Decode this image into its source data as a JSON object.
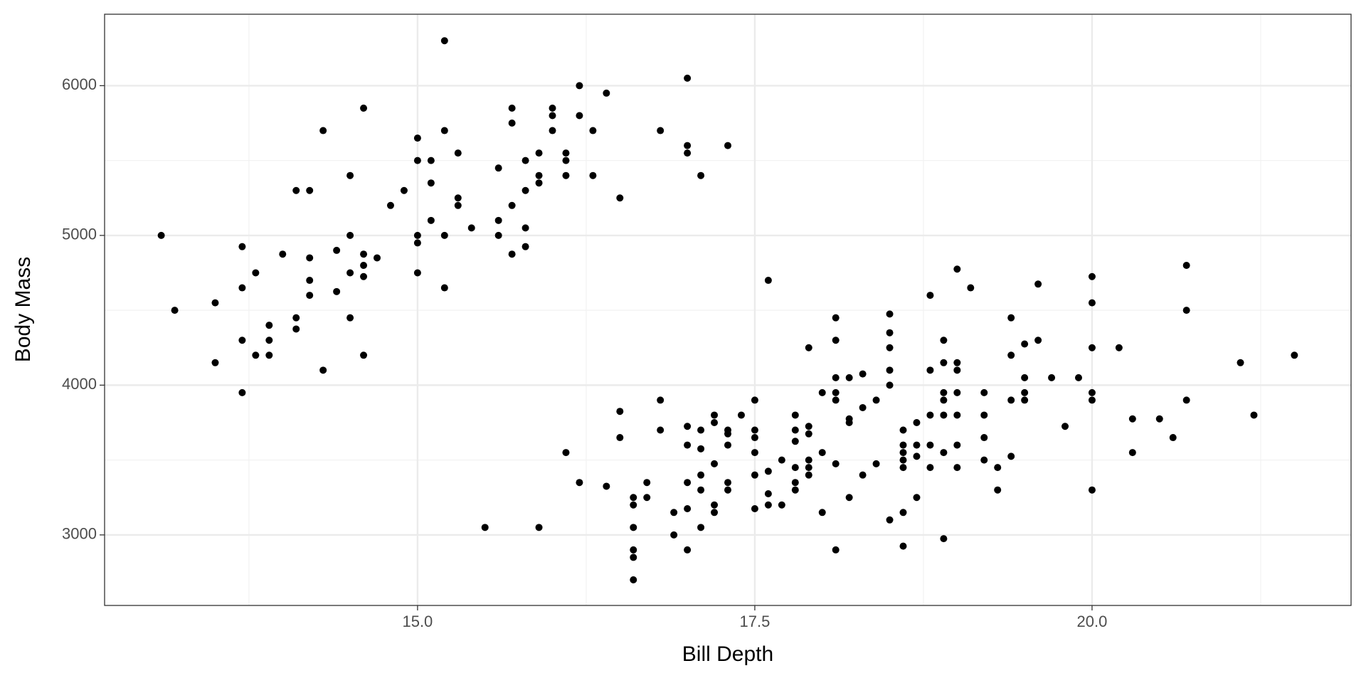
{
  "chart_data": {
    "type": "scatter",
    "x_label": "Bill Depth",
    "y_label": "Body Mass",
    "color": "#000000",
    "xlim": [
      12.68,
      21.92
    ],
    "ylim": [
      2529,
      6477
    ],
    "xticks": [
      {
        "value": 15,
        "label": "15.0"
      },
      17.5,
      {
        "value": 20,
        "label": "20.0"
      }
    ],
    "yticks": [
      3000,
      4000,
      5000,
      6000
    ],
    "minor_xticks": [
      13.75,
      16.25,
      18.75,
      21.25
    ],
    "minor_yticks": [
      3500,
      4500,
      5500
    ],
    "grid": true,
    "x": [
      13.1,
      13.2,
      13.5,
      13.5,
      13.7,
      13.7,
      13.7,
      13.7,
      13.8,
      13.8,
      13.9,
      13.9,
      13.9,
      14.0,
      14.1,
      14.1,
      14.1,
      14.2,
      14.2,
      14.2,
      14.2,
      14.3,
      14.3,
      14.4,
      14.4,
      14.5,
      14.5,
      14.5,
      14.5,
      14.6,
      14.6,
      14.6,
      14.6,
      14.6,
      14.7,
      14.8,
      14.9,
      15.0,
      15.0,
      15.0,
      15.0,
      15.0,
      15.1,
      15.1,
      15.1,
      15.2,
      15.2,
      15.2,
      15.2,
      15.3,
      15.3,
      15.3,
      15.4,
      15.6,
      15.6,
      15.6,
      15.7,
      15.7,
      15.7,
      15.7,
      15.8,
      15.8,
      15.8,
      15.8,
      15.9,
      15.9,
      15.9,
      16.0,
      16.0,
      16.0,
      16.1,
      16.1,
      16.1,
      16.2,
      16.2,
      16.3,
      16.3,
      16.4,
      16.5,
      16.8,
      17.0,
      17.0,
      17.0,
      17.1,
      17.3,
      15.5,
      15.9,
      16.1,
      16.2,
      16.4,
      16.5,
      16.5,
      16.6,
      16.6,
      16.6,
      16.6,
      16.6,
      16.6,
      16.7,
      16.7,
      16.8,
      16.8,
      16.9,
      16.9,
      17.0,
      17.0,
      17.0,
      17.0,
      17.0,
      17.1,
      17.1,
      17.1,
      17.1,
      17.1,
      17.2,
      17.2,
      17.2,
      17.2,
      17.2,
      17.3,
      17.3,
      17.3,
      17.3,
      17.3,
      17.4,
      17.5,
      17.5,
      17.5,
      17.5,
      17.5,
      17.5,
      17.6,
      17.6,
      17.6,
      17.6,
      17.7,
      17.7,
      17.8,
      17.8,
      17.8,
      17.8,
      17.8,
      17.8,
      17.9,
      17.9,
      17.9,
      17.9,
      17.9,
      17.9,
      18.0,
      18.0,
      18.0,
      18.1,
      18.1,
      18.1,
      18.1,
      18.1,
      18.1,
      18.1,
      18.2,
      18.2,
      18.2,
      18.2,
      18.3,
      18.3,
      18.3,
      18.4,
      18.4,
      18.5,
      18.5,
      18.5,
      18.5,
      18.5,
      18.5,
      18.6,
      18.6,
      18.6,
      18.6,
      18.6,
      18.6,
      18.6,
      18.7,
      18.7,
      18.7,
      18.7,
      18.8,
      18.8,
      18.8,
      18.8,
      18.8,
      18.9,
      18.9,
      18.9,
      18.9,
      18.9,
      18.9,
      18.9,
      19.0,
      19.0,
      19.0,
      19.0,
      19.0,
      19.0,
      19.0,
      19.1,
      19.2,
      19.2,
      19.2,
      19.2,
      19.3,
      19.3,
      19.4,
      19.4,
      19.4,
      19.4,
      19.5,
      19.5,
      19.5,
      19.5,
      19.6,
      19.6,
      19.7,
      19.8,
      19.9,
      20.0,
      20.0,
      20.0,
      20.0,
      20.0,
      20.0,
      20.2,
      20.3,
      20.3,
      20.5,
      20.6,
      20.7,
      20.7,
      20.7,
      21.1,
      21.2,
      21.5
    ],
    "values": [
      5000,
      4500,
      4550,
      4150,
      4925,
      4650,
      4300,
      3950,
      4750,
      4200,
      4400,
      4300,
      4200,
      4875,
      5300,
      4450,
      4375,
      5300,
      4850,
      4700,
      4600,
      5700,
      4100,
      4900,
      4625,
      5400,
      5000,
      4750,
      4450,
      5850,
      4875,
      4800,
      4725,
      4200,
      4850,
      5200,
      5300,
      5650,
      5500,
      5000,
      4950,
      4750,
      5500,
      5350,
      5100,
      6300,
      5700,
      5000,
      4650,
      5550,
      5250,
      5200,
      5050,
      5450,
      5100,
      5000,
      5850,
      5750,
      5200,
      4875,
      5500,
      5300,
      5050,
      4925,
      5550,
      5400,
      5350,
      5850,
      5800,
      5700,
      5550,
      5500,
      5400,
      6000,
      5800,
      5700,
      5400,
      5950,
      5250,
      5700,
      6050,
      5600,
      5550,
      5400,
      5600,
      3050,
      3050,
      3550,
      3350,
      3325,
      3825,
      3650,
      3250,
      3200,
      3050,
      2900,
      2850,
      2700,
      3350,
      3250,
      3900,
      3700,
      3150,
      3000,
      3725,
      3600,
      3350,
      3175,
      2900,
      3700,
      3575,
      3400,
      3300,
      3050,
      3800,
      3750,
      3475,
      3200,
      3150,
      3700,
      3675,
      3600,
      3350,
      3300,
      3800,
      3900,
      3700,
      3650,
      3550,
      3400,
      3175,
      4700,
      3425,
      3275,
      3200,
      3500,
      3200,
      3800,
      3700,
      3625,
      3450,
      3350,
      3300,
      4250,
      3725,
      3675,
      3500,
      3450,
      3400,
      3950,
      3550,
      3150,
      4450,
      4300,
      4050,
      3950,
      3900,
      3475,
      2900,
      4050,
      3775,
      3750,
      3250,
      4075,
      3850,
      3400,
      3900,
      3475,
      4475,
      4350,
      4250,
      4100,
      4000,
      3100,
      3700,
      3600,
      3550,
      3500,
      3450,
      3150,
      2925,
      3750,
      3600,
      3525,
      3250,
      4600,
      4100,
      3800,
      3600,
      3450,
      4300,
      4150,
      3950,
      3900,
      3800,
      3550,
      2975,
      4775,
      4150,
      4100,
      3950,
      3800,
      3600,
      3450,
      4650,
      3950,
      3800,
      3650,
      3500,
      3450,
      3300,
      4450,
      4200,
      3900,
      3525,
      4275,
      4050,
      3950,
      3900,
      4675,
      4300,
      4050,
      3725,
      4050,
      4725,
      4550,
      4250,
      3950,
      3900,
      3300,
      4250,
      3775,
      3550,
      3775,
      3650,
      4800,
      4500,
      3900,
      4150,
      3800,
      4200
    ]
  }
}
